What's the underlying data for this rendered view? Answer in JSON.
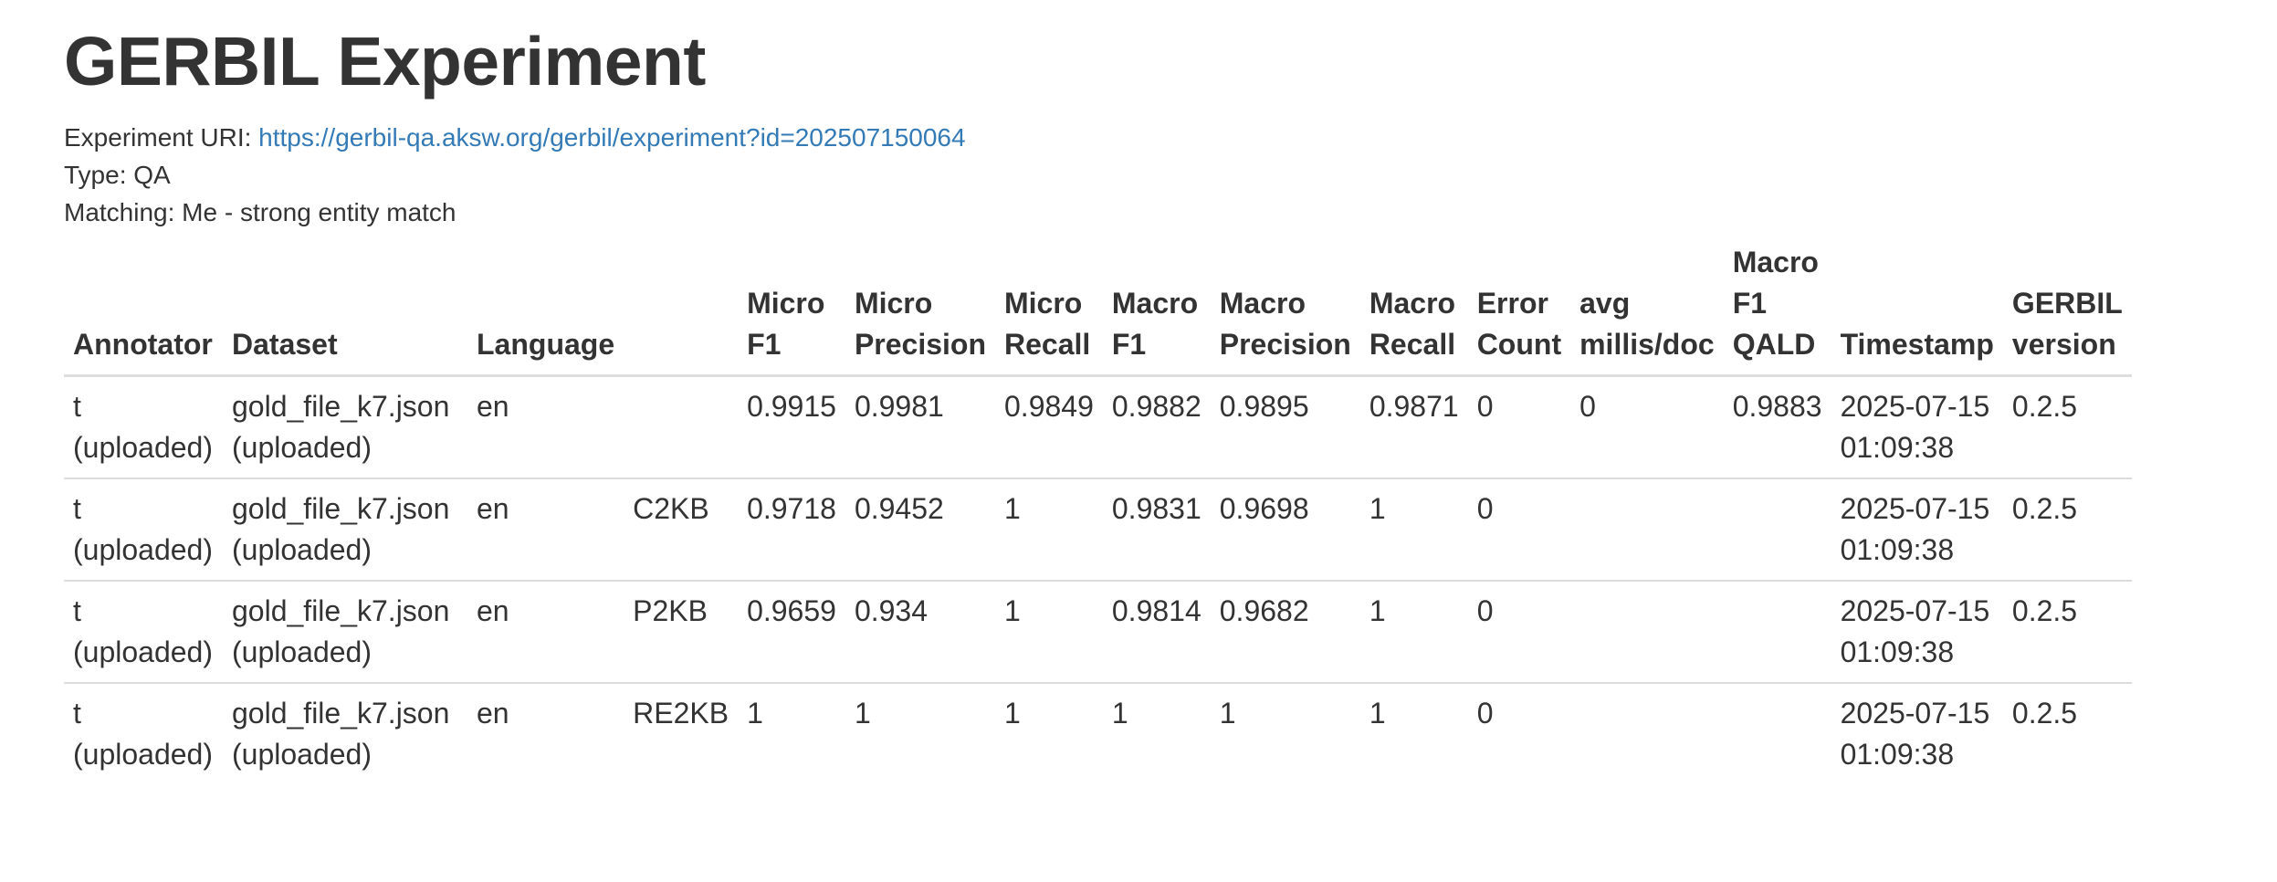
{
  "page": {
    "title": "GERBIL Experiment",
    "experiment_uri_label": "Experiment URI: ",
    "experiment_uri": "https://gerbil-qa.aksw.org/gerbil/experiment?id=202507150064",
    "type_text": "Type: QA",
    "matching_text": "Matching: Me - strong entity match"
  },
  "table": {
    "headers": [
      [
        "Annotator"
      ],
      [
        "Dataset"
      ],
      [
        "Language"
      ],
      [
        ""
      ],
      [
        "Micro",
        "F1"
      ],
      [
        "Micro",
        "Precision"
      ],
      [
        "Micro",
        "Recall"
      ],
      [
        "Macro",
        "F1"
      ],
      [
        "Macro",
        "Precision"
      ],
      [
        "Macro",
        "Recall"
      ],
      [
        "Error",
        "Count"
      ],
      [
        "avg",
        "millis/doc"
      ],
      [
        "Macro",
        "F1",
        "QALD"
      ],
      [
        "Timestamp"
      ],
      [
        "GERBIL",
        "version"
      ]
    ],
    "rows": [
      {
        "annotator": [
          "t",
          "(uploaded)"
        ],
        "dataset": [
          "gold_file_k7.json",
          "(uploaded)"
        ],
        "language": "en",
        "subtask": "",
        "micro_f1": "0.9915",
        "micro_precision": "0.9981",
        "micro_recall": "0.9849",
        "macro_f1": "0.9882",
        "macro_precision": "0.9895",
        "macro_recall": "0.9871",
        "error_count": "0",
        "avg_millis": "0",
        "macro_f1_qald": "0.9883",
        "timestamp": [
          "2025-07-15",
          "01:09:38"
        ],
        "version": "0.2.5"
      },
      {
        "annotator": [
          "t",
          "(uploaded)"
        ],
        "dataset": [
          "gold_file_k7.json",
          "(uploaded)"
        ],
        "language": "en",
        "subtask": "C2KB",
        "micro_f1": "0.9718",
        "micro_precision": "0.9452",
        "micro_recall": "1",
        "macro_f1": "0.9831",
        "macro_precision": "0.9698",
        "macro_recall": "1",
        "error_count": "0",
        "avg_millis": "",
        "macro_f1_qald": "",
        "timestamp": [
          "2025-07-15",
          "01:09:38"
        ],
        "version": "0.2.5"
      },
      {
        "annotator": [
          "t",
          "(uploaded)"
        ],
        "dataset": [
          "gold_file_k7.json",
          "(uploaded)"
        ],
        "language": "en",
        "subtask": "P2KB",
        "micro_f1": "0.9659",
        "micro_precision": "0.934",
        "micro_recall": "1",
        "macro_f1": "0.9814",
        "macro_precision": "0.9682",
        "macro_recall": "1",
        "error_count": "0",
        "avg_millis": "",
        "macro_f1_qald": "",
        "timestamp": [
          "2025-07-15",
          "01:09:38"
        ],
        "version": "0.2.5"
      },
      {
        "annotator": [
          "t",
          "(uploaded)"
        ],
        "dataset": [
          "gold_file_k7.json",
          "(uploaded)"
        ],
        "language": "en",
        "subtask": "RE2KB",
        "micro_f1": "1",
        "micro_precision": "1",
        "micro_recall": "1",
        "macro_f1": "1",
        "macro_precision": "1",
        "macro_recall": "1",
        "error_count": "0",
        "avg_millis": "",
        "macro_f1_qald": "",
        "timestamp": [
          "2025-07-15",
          "01:09:38"
        ],
        "version": "0.2.5"
      }
    ]
  }
}
